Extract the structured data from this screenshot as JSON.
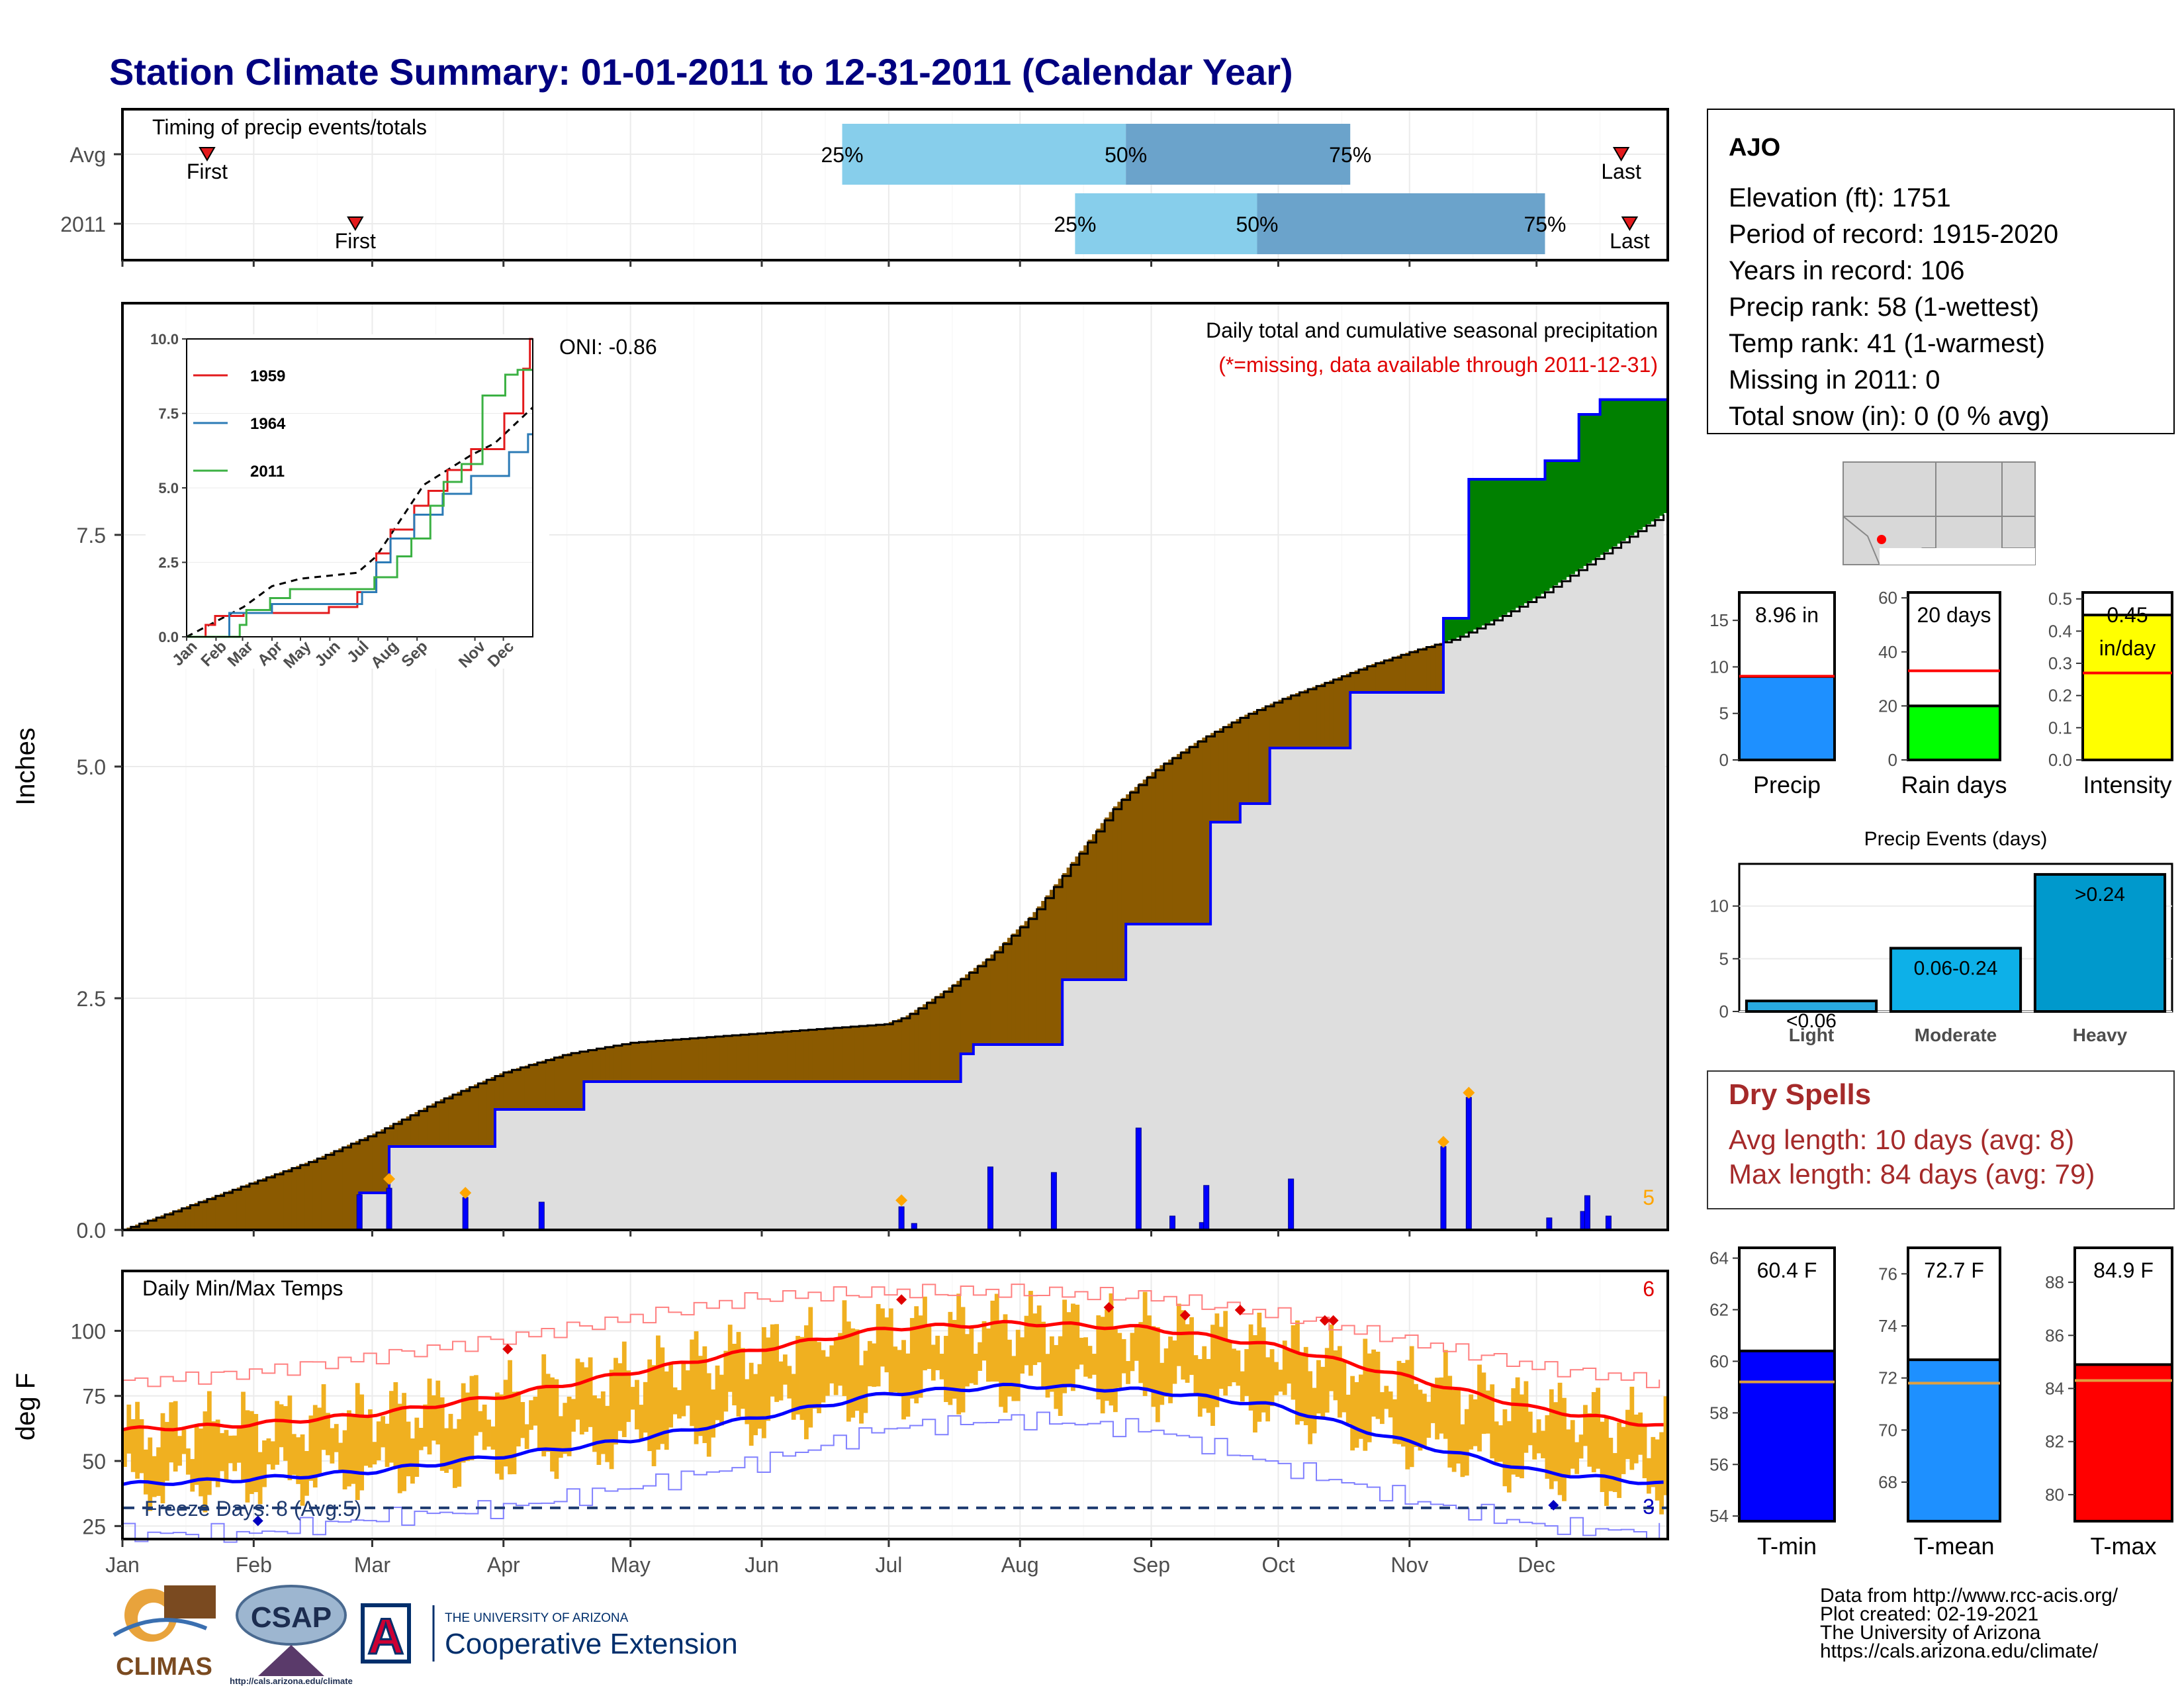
{
  "page": {
    "title": "Station Climate Summary: 01-01-2011 to 12-31-2011 (Calendar Year)",
    "footer_lines": [
      "Data from http://www.rcc-acis.org/",
      "Plot created: 02-19-2021",
      "The University of Arizona",
      "https://cals.arizona.edu/climate/"
    ],
    "logos": {
      "climas": "CLIMAS",
      "csap": "CSAP",
      "csap_url": "http://cals.arizona.edu/climate",
      "ua_top": "THE UNIVERSITY OF ARIZONA",
      "ua_main": "Cooperative Extension",
      "ua_letter": "A"
    }
  },
  "months": [
    "Jan",
    "Feb",
    "Mar",
    "Apr",
    "May",
    "Jun",
    "Jul",
    "Aug",
    "Sep",
    "Oct",
    "Nov",
    "Dec"
  ],
  "station": {
    "name": "AJO",
    "lines": [
      "Elevation (ft): 1751",
      "Period of record: 1915-2020",
      "Years in record: 106",
      "Precip rank: 58 (1-wettest)",
      "Temp rank: 41 (1-warmest)",
      "Missing in 2011: 0",
      "Total snow (in): 0 (0 % avg)"
    ]
  },
  "dry_spells": {
    "title": "Dry Spells",
    "avg_line": "Avg length: 10 days (avg: 8)",
    "max_line": "Max length: 84 days (avg: 79)"
  },
  "chart_data": [
    {
      "id": "timing",
      "type": "bar",
      "title": "Timing of precip events/totals",
      "rows": [
        {
          "label": "Avg",
          "first_day": 20,
          "last_day": 354,
          "p25_day": 170,
          "p50_day": 237,
          "p75_day": 290,
          "first_label": "First",
          "last_label": "Last"
        },
        {
          "label": "2011",
          "first_day": 55,
          "last_day": 356,
          "p25_day": 225,
          "p50_day": 268,
          "p75_day": 336,
          "first_label": "First",
          "last_label": "Last"
        }
      ],
      "pct_labels": [
        "25%",
        "50%",
        "75%"
      ],
      "colors": {
        "early": "#87CEEB",
        "late": "#6BA3CB",
        "marker": "#E31A1C"
      }
    },
    {
      "id": "precip",
      "type": "area",
      "title": "Daily total and cumulative seasonal precipitation",
      "subtitle": "(*=missing, data available through 2011-12-31)",
      "ylabel": "Inches",
      "ylim": [
        0,
        10
      ],
      "yticks": [
        0.0,
        2.5,
        5.0,
        7.5
      ],
      "oni": "ONI: -0.86",
      "count_label": "5",
      "avg_cum": [
        [
          0,
          0.0
        ],
        [
          15,
          0.25
        ],
        [
          30,
          0.5
        ],
        [
          45,
          0.75
        ],
        [
          60,
          1.05
        ],
        [
          75,
          1.4
        ],
        [
          90,
          1.7
        ],
        [
          105,
          1.9
        ],
        [
          120,
          2.02
        ],
        [
          135,
          2.07
        ],
        [
          150,
          2.12
        ],
        [
          165,
          2.17
        ],
        [
          180,
          2.22
        ],
        [
          185,
          2.3
        ],
        [
          195,
          2.6
        ],
        [
          205,
          2.95
        ],
        [
          215,
          3.4
        ],
        [
          225,
          4.0
        ],
        [
          235,
          4.6
        ],
        [
          245,
          5.0
        ],
        [
          255,
          5.3
        ],
        [
          265,
          5.55
        ],
        [
          275,
          5.75
        ],
        [
          285,
          5.92
        ],
        [
          295,
          6.1
        ],
        [
          305,
          6.25
        ],
        [
          315,
          6.38
        ],
        [
          325,
          6.6
        ],
        [
          335,
          6.85
        ],
        [
          345,
          7.15
        ],
        [
          355,
          7.45
        ],
        [
          365,
          7.75
        ]
      ],
      "obs_cum": [
        [
          0,
          0
        ],
        [
          56,
          0
        ],
        [
          56,
          0.4
        ],
        [
          63,
          0.4
        ],
        [
          63,
          0.9
        ],
        [
          88,
          0.9
        ],
        [
          88,
          1.3
        ],
        [
          109,
          1.3
        ],
        [
          109,
          1.6
        ],
        [
          198,
          1.6
        ],
        [
          198,
          1.9
        ],
        [
          201,
          1.9
        ],
        [
          201,
          2.0
        ],
        [
          222,
          2.0
        ],
        [
          222,
          2.7
        ],
        [
          237,
          2.7
        ],
        [
          237,
          3.3
        ],
        [
          257,
          3.3
        ],
        [
          257,
          4.4
        ],
        [
          264,
          4.4
        ],
        [
          264,
          4.6
        ],
        [
          271,
          4.6
        ],
        [
          271,
          5.2
        ],
        [
          290,
          5.2
        ],
        [
          290,
          5.8
        ],
        [
          312,
          5.8
        ],
        [
          312,
          6.6
        ],
        [
          318,
          6.6
        ],
        [
          318,
          8.1
        ],
        [
          336,
          8.1
        ],
        [
          336,
          8.3
        ],
        [
          344,
          8.3
        ],
        [
          344,
          8.8
        ],
        [
          349,
          8.8
        ],
        [
          349,
          8.96
        ],
        [
          365,
          8.96
        ]
      ],
      "daily_bars": [
        [
          56,
          0.38
        ],
        [
          63,
          0.45
        ],
        [
          81,
          0.35
        ],
        [
          99,
          0.3
        ],
        [
          184,
          0.25
        ],
        [
          187,
          0.07
        ],
        [
          205,
          0.68
        ],
        [
          220,
          0.62
        ],
        [
          240,
          1.1
        ],
        [
          248,
          0.15
        ],
        [
          255,
          0.08
        ],
        [
          256,
          0.48
        ],
        [
          276,
          0.55
        ],
        [
          312,
          0.9
        ],
        [
          318,
          1.43
        ],
        [
          337,
          0.13
        ],
        [
          345,
          0.2
        ],
        [
          346,
          0.37
        ],
        [
          351,
          0.15
        ]
      ],
      "diamonds": [
        [
          63,
          0.55
        ],
        [
          81,
          0.4
        ],
        [
          184,
          0.32
        ],
        [
          312,
          0.95
        ],
        [
          318,
          1.48
        ]
      ],
      "colors": {
        "above": "#008000",
        "below": "#8B5A00",
        "fill": "#DEDEDE",
        "obs": "#0000FF",
        "diamond": "#FFA500"
      }
    },
    {
      "id": "inset",
      "type": "line",
      "ylim": [
        0,
        10
      ],
      "yticks": [
        "0.0",
        "2.5",
        "5.0",
        "7.5",
        "10.0"
      ],
      "series": [
        {
          "name": "1959",
          "color": "#E31A1C",
          "values": [
            [
              0,
              0
            ],
            [
              20,
              0
            ],
            [
              20,
              0.4
            ],
            [
              30,
              0.4
            ],
            [
              30,
              0.7
            ],
            [
              60,
              0.7
            ],
            [
              60,
              0.8
            ],
            [
              150,
              0.8
            ],
            [
              150,
              1.0
            ],
            [
              180,
              1.0
            ],
            [
              180,
              1.5
            ],
            [
              200,
              1.5
            ],
            [
              200,
              2.8
            ],
            [
              215,
              2.8
            ],
            [
              215,
              3.6
            ],
            [
              240,
              3.6
            ],
            [
              240,
              4.4
            ],
            [
              255,
              4.4
            ],
            [
              255,
              4.9
            ],
            [
              275,
              4.9
            ],
            [
              275,
              5.6
            ],
            [
              300,
              5.6
            ],
            [
              300,
              6.3
            ],
            [
              335,
              6.3
            ],
            [
              335,
              7.5
            ],
            [
              355,
              7.5
            ],
            [
              355,
              9.0
            ],
            [
              362,
              9.0
            ],
            [
              362,
              10.0
            ],
            [
              365,
              10.0
            ]
          ]
        },
        {
          "name": "1964",
          "color": "#2C7BB6",
          "values": [
            [
              0,
              0
            ],
            [
              45,
              0
            ],
            [
              45,
              0.8
            ],
            [
              90,
              0.8
            ],
            [
              90,
              1.1
            ],
            [
              185,
              1.1
            ],
            [
              185,
              1.5
            ],
            [
              200,
              1.5
            ],
            [
              200,
              2.5
            ],
            [
              215,
              2.5
            ],
            [
              215,
              3.3
            ],
            [
              240,
              3.3
            ],
            [
              240,
              4.1
            ],
            [
              270,
              4.1
            ],
            [
              270,
              4.8
            ],
            [
              300,
              4.8
            ],
            [
              300,
              5.4
            ],
            [
              340,
              5.4
            ],
            [
              340,
              6.2
            ],
            [
              360,
              6.2
            ],
            [
              360,
              6.8
            ],
            [
              365,
              6.8
            ]
          ]
        },
        {
          "name": "2011",
          "color": "#3BB143",
          "values": [
            [
              0,
              0
            ],
            [
              56,
              0
            ],
            [
              56,
              0.4
            ],
            [
              63,
              0.4
            ],
            [
              63,
              0.9
            ],
            [
              88,
              0.9
            ],
            [
              88,
              1.3
            ],
            [
              109,
              1.3
            ],
            [
              109,
              1.6
            ],
            [
              198,
              1.6
            ],
            [
              198,
              2.0
            ],
            [
              222,
              2.0
            ],
            [
              222,
              2.7
            ],
            [
              237,
              2.7
            ],
            [
              237,
              3.3
            ],
            [
              257,
              3.3
            ],
            [
              257,
              4.4
            ],
            [
              271,
              4.4
            ],
            [
              271,
              5.2
            ],
            [
              290,
              5.2
            ],
            [
              290,
              5.8
            ],
            [
              312,
              5.8
            ],
            [
              312,
              8.1
            ],
            [
              336,
              8.1
            ],
            [
              336,
              8.8
            ],
            [
              349,
              8.8
            ],
            [
              349,
              8.96
            ],
            [
              365,
              8.96
            ]
          ]
        }
      ],
      "avg": [
        [
          0,
          0
        ],
        [
          30,
          0.5
        ],
        [
          60,
          1.0
        ],
        [
          90,
          1.7
        ],
        [
          120,
          1.95
        ],
        [
          150,
          2.05
        ],
        [
          180,
          2.15
        ],
        [
          200,
          2.7
        ],
        [
          225,
          3.9
        ],
        [
          250,
          5.1
        ],
        [
          275,
          5.6
        ],
        [
          300,
          6.1
        ],
        [
          325,
          6.5
        ],
        [
          365,
          7.7
        ]
      ]
    },
    {
      "id": "temps",
      "type": "line",
      "title": "Daily Min/Max Temps",
      "ylabel": "deg F",
      "ylim": [
        20,
        123
      ],
      "yticks": [
        25,
        50,
        75,
        100
      ],
      "freeze_label": "Freeze Days: 8 (Avg:5)",
      "freeze_temp": 32,
      "count_hot": "6",
      "count_cold": "3",
      "avg_max": [
        [
          0,
          62
        ],
        [
          30,
          64
        ],
        [
          59,
          68
        ],
        [
          90,
          75
        ],
        [
          120,
          84
        ],
        [
          151,
          93
        ],
        [
          181,
          101
        ],
        [
          212,
          103
        ],
        [
          243,
          101
        ],
        [
          273,
          94
        ],
        [
          304,
          82
        ],
        [
          334,
          70
        ],
        [
          365,
          63
        ]
      ],
      "avg_min": [
        [
          0,
          41
        ],
        [
          30,
          43
        ],
        [
          59,
          46
        ],
        [
          90,
          52
        ],
        [
          120,
          58
        ],
        [
          151,
          67
        ],
        [
          181,
          76
        ],
        [
          212,
          79
        ],
        [
          243,
          77
        ],
        [
          273,
          71
        ],
        [
          304,
          57
        ],
        [
          334,
          46
        ],
        [
          365,
          41
        ]
      ],
      "rec_max": [
        [
          0,
          80
        ],
        [
          30,
          84
        ],
        [
          59,
          90
        ],
        [
          90,
          97
        ],
        [
          120,
          105
        ],
        [
          151,
          113
        ],
        [
          181,
          115
        ],
        [
          212,
          115
        ],
        [
          243,
          113
        ],
        [
          273,
          106
        ],
        [
          304,
          96
        ],
        [
          334,
          86
        ],
        [
          365,
          80
        ]
      ],
      "rec_min": [
        [
          0,
          22
        ],
        [
          30,
          22
        ],
        [
          59,
          28
        ],
        [
          90,
          32
        ],
        [
          120,
          40
        ],
        [
          151,
          50
        ],
        [
          181,
          63
        ],
        [
          212,
          66
        ],
        [
          243,
          62
        ],
        [
          273,
          48
        ],
        [
          304,
          35
        ],
        [
          334,
          25
        ],
        [
          365,
          22
        ]
      ],
      "hot_marks": [
        [
          184,
          112
        ],
        [
          233,
          109
        ],
        [
          251,
          106
        ],
        [
          264,
          108
        ],
        [
          264,
          108
        ],
        [
          284,
          104
        ],
        [
          286,
          104
        ],
        [
          91,
          93
        ]
      ],
      "cold_marks": [
        [
          32,
          27
        ],
        [
          338,
          33
        ]
      ],
      "colors": {
        "bars": "#F0B020",
        "avg_max": "#FF0000",
        "avg_min": "#0000FF",
        "rec_max": "#FF8080",
        "rec_min": "#8080FF",
        "freeze": "#1F3B70"
      }
    },
    {
      "id": "precip_total",
      "type": "bar",
      "category": "Precip",
      "value": 8.96,
      "avg": 9.0,
      "label": "8.96 in",
      "ylim": [
        0,
        18
      ],
      "yticks": [
        0,
        5,
        10,
        15
      ],
      "color": "#1E90FF"
    },
    {
      "id": "rain_days",
      "type": "bar",
      "category": "Rain days",
      "value": 20,
      "avg": 33,
      "label": "20 days",
      "ylim": [
        0,
        62
      ],
      "yticks": [
        0,
        20,
        40,
        60
      ],
      "color": "#00FF00"
    },
    {
      "id": "intensity",
      "type": "bar",
      "category": "Intensity",
      "value": 0.45,
      "avg": 0.27,
      "label": "0.45",
      "label2": "in/day",
      "ylim": [
        0,
        0.52
      ],
      "yticks": [
        "0.0",
        "0.1",
        "0.2",
        "0.3",
        "0.4",
        "0.5"
      ],
      "color": "#FFFF00"
    },
    {
      "id": "events",
      "type": "bar",
      "title": "Precip Events (days)",
      "categories": [
        "Light",
        "Moderate",
        "Heavy"
      ],
      "values": [
        1,
        6,
        13
      ],
      "bar_labels": [
        "<0.06",
        "0.06-0.24",
        ">0.24"
      ],
      "ylim": [
        0,
        14
      ],
      "yticks": [
        0,
        5,
        10
      ],
      "colors": [
        "#29A9E0",
        "#0DB0E8",
        "#0099CC"
      ]
    },
    {
      "id": "tmin",
      "type": "bar",
      "category": "T-min",
      "value": 60.4,
      "avg": 59.2,
      "label": "60.4 F",
      "ylim": [
        53.8,
        64.4
      ],
      "yticks": [
        54,
        56,
        58,
        60,
        62,
        64
      ],
      "color": "#0000FF"
    },
    {
      "id": "tmean",
      "type": "bar",
      "category": "T-mean",
      "value": 72.7,
      "avg": 71.8,
      "label": "72.7 F",
      "ylim": [
        66.5,
        77.0
      ],
      "yticks": [
        68,
        70,
        72,
        74,
        76
      ],
      "color": "#1E90FF"
    },
    {
      "id": "tmax",
      "type": "bar",
      "category": "T-max",
      "value": 84.9,
      "avg": 84.3,
      "label": "84.9 F",
      "ylim": [
        79.0,
        89.3
      ],
      "yticks": [
        80,
        82,
        84,
        86,
        88
      ],
      "color": "#FF0000"
    }
  ]
}
